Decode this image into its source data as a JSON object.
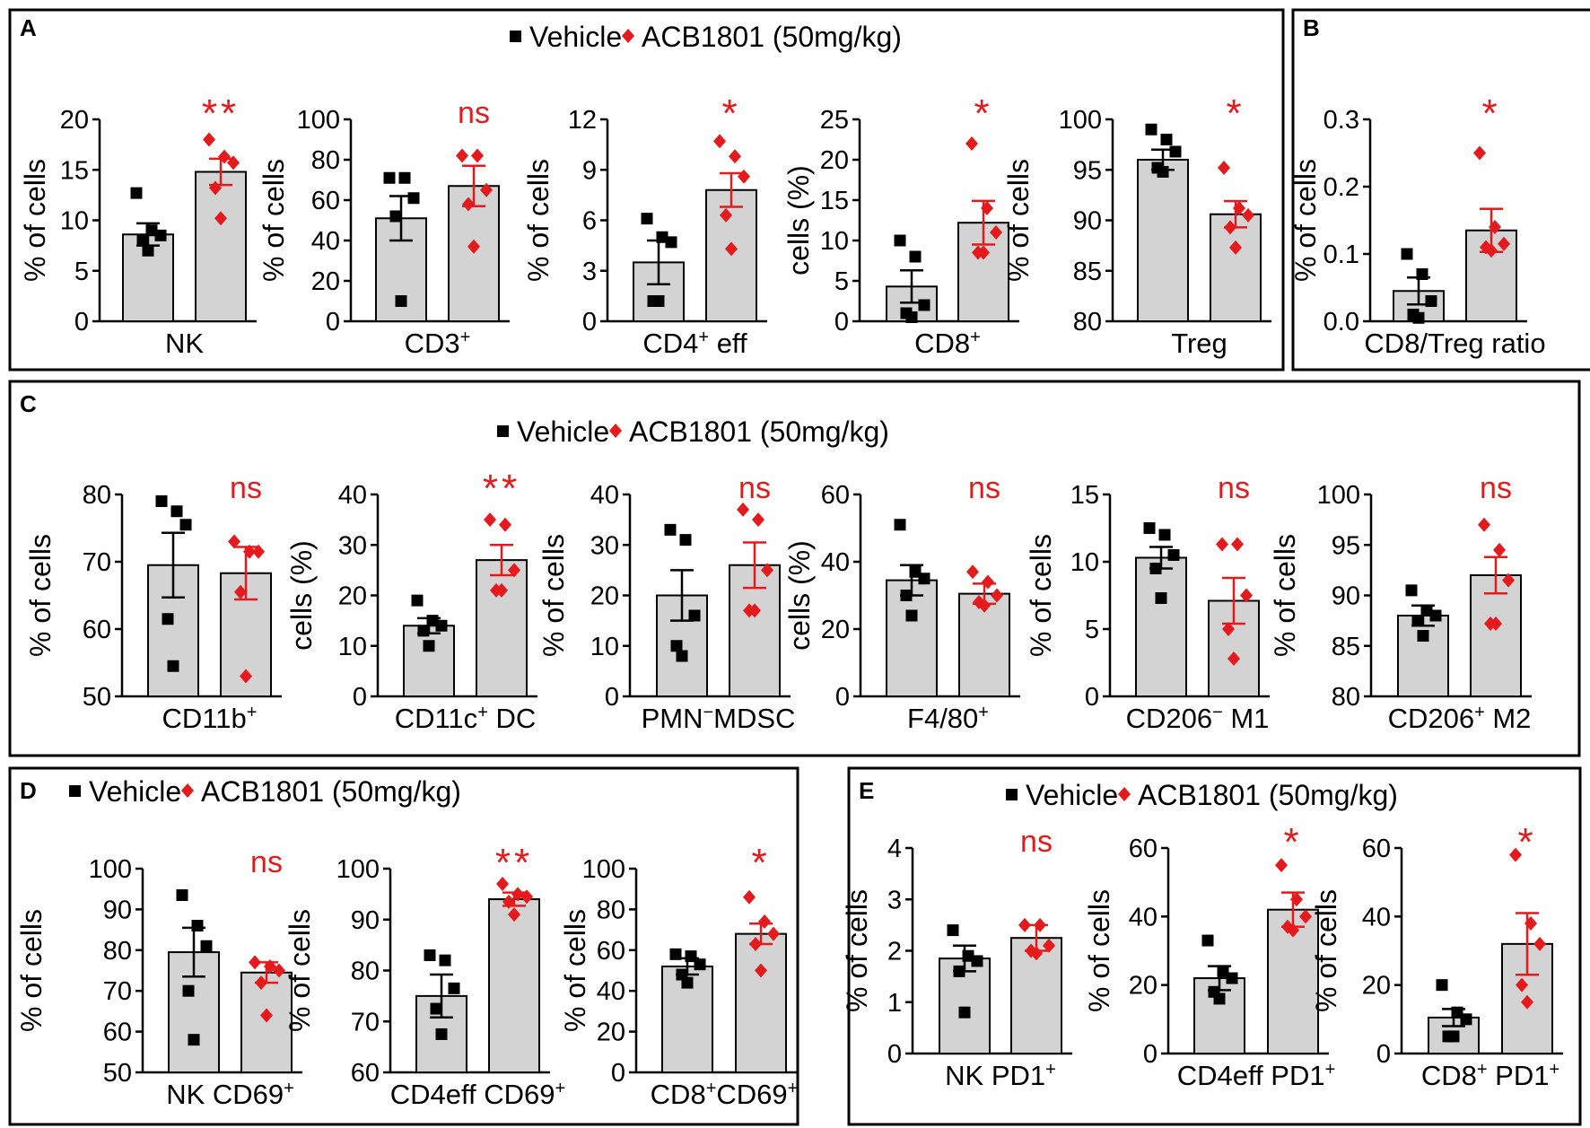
{
  "legend": {
    "vehicle_label": "Vehicle",
    "treatment_label": "ACB1801 (50mg/kg)",
    "vehicle_color": "#000000",
    "treatment_color": "#e41a1c",
    "vehicle_marker": "square-icon",
    "treatment_marker": "diamond-icon"
  },
  "panels": [
    {
      "label": "A",
      "show_legend": true
    },
    {
      "label": "B",
      "show_legend": false
    },
    {
      "label": "C",
      "show_legend": true
    },
    {
      "label": "D",
      "show_legend": true
    },
    {
      "label": "E",
      "show_legend": true
    }
  ],
  "chart_data": [
    {
      "panel": "A",
      "type": "bar",
      "xlabel": "NK",
      "ylabel": "% of cells",
      "ylim": [
        0,
        20
      ],
      "yticks": [
        0,
        5,
        10,
        15,
        20
      ],
      "bars": [
        {
          "group": "Vehicle",
          "mean": 8.6,
          "sem": 1.1,
          "points": [
            12.7,
            9.0,
            8.5,
            8.0,
            7.0
          ]
        },
        {
          "group": "ACB1801 (50mg/kg)",
          "mean": 14.8,
          "sem": 1.3,
          "points": [
            18.0,
            16.3,
            15.7,
            13.2,
            10.2
          ]
        }
      ],
      "significance": "**"
    },
    {
      "panel": "A",
      "type": "bar",
      "xlabel": "CD3+",
      "ylabel": "% of cells",
      "ylim": [
        0,
        100
      ],
      "yticks": [
        0,
        20,
        40,
        60,
        80,
        100
      ],
      "bars": [
        {
          "group": "Vehicle",
          "mean": 51,
          "sem": 11,
          "points": [
            71,
            71,
            61,
            52,
            10
          ]
        },
        {
          "group": "ACB1801 (50mg/kg)",
          "mean": 67,
          "sem": 10,
          "points": [
            82,
            82,
            65,
            58,
            37
          ]
        }
      ],
      "significance": "ns"
    },
    {
      "panel": "A",
      "type": "bar",
      "xlabel": "CD4+ eff",
      "ylabel": "% of cells",
      "ylim": [
        0,
        12
      ],
      "yticks": [
        0,
        3,
        6,
        9,
        12
      ],
      "bars": [
        {
          "group": "Vehicle",
          "mean": 3.5,
          "sem": 1.3,
          "points": [
            6.1,
            5.0,
            4.7,
            1.2,
            1.2
          ]
        },
        {
          "group": "ACB1801 (50mg/kg)",
          "mean": 7.8,
          "sem": 1.0,
          "points": [
            10.7,
            9.8,
            8.6,
            6.3,
            4.3
          ]
        }
      ],
      "significance": "*"
    },
    {
      "panel": "A",
      "type": "bar",
      "xlabel": "CD8+",
      "ylabel": "cells (%)",
      "ylim": [
        0,
        25
      ],
      "yticks": [
        0,
        5,
        10,
        15,
        20,
        25
      ],
      "bars": [
        {
          "group": "Vehicle",
          "mean": 4.3,
          "sem": 2.0,
          "points": [
            10.0,
            8.0,
            2.0,
            1.0,
            0.5
          ]
        },
        {
          "group": "ACB1801 (50mg/kg)",
          "mean": 12.2,
          "sem": 2.7,
          "points": [
            22.0,
            14.0,
            11.0,
            8.5,
            8.5
          ]
        }
      ],
      "significance": "*"
    },
    {
      "panel": "A",
      "type": "bar",
      "xlabel": "Treg",
      "ylabel": "% of cells",
      "ylim": [
        80,
        100
      ],
      "yticks": [
        80,
        85,
        90,
        95,
        100
      ],
      "bars": [
        {
          "group": "Vehicle",
          "mean": 96,
          "sem": 1.0,
          "points": [
            99,
            98,
            96.8,
            95.2,
            94.8
          ]
        },
        {
          "group": "ACB1801 (50mg/kg)",
          "mean": 90.6,
          "sem": 1.3,
          "points": [
            95.2,
            91.2,
            90.5,
            89.3,
            87.3
          ]
        }
      ],
      "significance": "*"
    },
    {
      "panel": "B",
      "type": "bar",
      "xlabel": "CD8/Treg ratio",
      "ylabel": "% of cells",
      "ylim": [
        0.0,
        0.3
      ],
      "yticks": [
        0.0,
        0.1,
        0.2,
        0.3
      ],
      "tick_labels": [
        "0.0",
        "0.1",
        "0.2",
        "0.3"
      ],
      "bars": [
        {
          "group": "Vehicle",
          "mean": 0.045,
          "sem": 0.02,
          "points": [
            0.1,
            0.07,
            0.03,
            0.01,
            0.005
          ]
        },
        {
          "group": "ACB1801 (50mg/kg)",
          "mean": 0.135,
          "sem": 0.032,
          "points": [
            0.25,
            0.14,
            0.115,
            0.11,
            0.105
          ]
        }
      ],
      "significance": "*"
    },
    {
      "panel": "C",
      "type": "bar",
      "xlabel": "CD11b+",
      "ylabel": "% of cells",
      "ylim": [
        50,
        80
      ],
      "yticks": [
        50,
        60,
        70,
        80
      ],
      "bars": [
        {
          "group": "Vehicle",
          "mean": 69.5,
          "sem": 4.8,
          "points": [
            79,
            77.5,
            75.5,
            61.5,
            54.5
          ]
        },
        {
          "group": "ACB1801 (50mg/kg)",
          "mean": 68.3,
          "sem": 3.9,
          "points": [
            73,
            71.5,
            71.5,
            65.5,
            53
          ]
        }
      ],
      "significance": "ns"
    },
    {
      "panel": "C",
      "type": "bar",
      "xlabel": "CD11c+ DC",
      "ylabel": "cells (%)",
      "ylim": [
        0,
        40
      ],
      "yticks": [
        0,
        10,
        20,
        30,
        40
      ],
      "bars": [
        {
          "group": "Vehicle",
          "mean": 14,
          "sem": 1.5,
          "points": [
            19,
            15,
            14,
            13,
            10
          ]
        },
        {
          "group": "ACB1801 (50mg/kg)",
          "mean": 27,
          "sem": 3.0,
          "points": [
            35,
            34,
            25,
            21,
            21
          ]
        }
      ],
      "significance": "**"
    },
    {
      "panel": "C",
      "type": "bar",
      "xlabel": "PMN-MDSC",
      "ylabel": "% of cells",
      "ylim": [
        0,
        40
      ],
      "yticks": [
        0,
        10,
        20,
        30,
        40
      ],
      "bars": [
        {
          "group": "Vehicle",
          "mean": 20,
          "sem": 5.0,
          "points": [
            33,
            31,
            16,
            10,
            8
          ]
        },
        {
          "group": "ACB1801 (50mg/kg)",
          "mean": 26,
          "sem": 4.5,
          "points": [
            37,
            35,
            25,
            17,
            17
          ]
        }
      ],
      "significance": "ns"
    },
    {
      "panel": "C",
      "type": "bar",
      "xlabel": "F4/80+",
      "ylabel": "cells (%)",
      "ylim": [
        0,
        60
      ],
      "yticks": [
        0,
        20,
        40,
        60
      ],
      "bars": [
        {
          "group": "Vehicle",
          "mean": 34.5,
          "sem": 4.5,
          "points": [
            51,
            37,
            35,
            30,
            24
          ]
        },
        {
          "group": "ACB1801 (50mg/kg)",
          "mean": 30.5,
          "sem": 3.0,
          "points": [
            37,
            34,
            30,
            28,
            27
          ]
        }
      ],
      "significance": "ns"
    },
    {
      "panel": "C",
      "type": "bar",
      "xlabel": "CD206- M1",
      "ylabel": "% of cells",
      "ylim": [
        0,
        15
      ],
      "yticks": [
        0,
        5,
        10,
        15
      ],
      "bars": [
        {
          "group": "Vehicle",
          "mean": 10.3,
          "sem": 0.8,
          "points": [
            12.5,
            12.0,
            10.5,
            9.5,
            7.3
          ]
        },
        {
          "group": "ACB1801 (50mg/kg)",
          "mean": 7.1,
          "sem": 1.7,
          "points": [
            11.3,
            11.3,
            7.5,
            5.0,
            2.8
          ]
        }
      ],
      "significance": "ns"
    },
    {
      "panel": "C",
      "type": "bar",
      "xlabel": "CD206+ M2",
      "ylabel": "% of cells",
      "ylim": [
        80,
        100
      ],
      "yticks": [
        80,
        85,
        90,
        95,
        100
      ],
      "bars": [
        {
          "group": "Vehicle",
          "mean": 88,
          "sem": 1.0,
          "points": [
            90.5,
            88.5,
            88,
            87.5,
            86
          ]
        },
        {
          "group": "ACB1801 (50mg/kg)",
          "mean": 92,
          "sem": 1.8,
          "points": [
            97,
            94.5,
            91.5,
            87.2,
            87.2
          ]
        }
      ],
      "significance": "ns"
    },
    {
      "panel": "D",
      "type": "bar",
      "xlabel": "NK CD69+",
      "ylabel": "% of cells",
      "ylim": [
        50,
        100
      ],
      "yticks": [
        50,
        60,
        70,
        80,
        90,
        100
      ],
      "bars": [
        {
          "group": "Vehicle",
          "mean": 79.5,
          "sem": 6.0,
          "points": [
            93.5,
            86,
            81,
            70,
            58
          ]
        },
        {
          "group": "ACB1801 (50mg/kg)",
          "mean": 74.5,
          "sem": 2.5,
          "points": [
            77,
            76,
            75,
            72,
            64
          ]
        }
      ],
      "significance": "ns"
    },
    {
      "panel": "D",
      "type": "bar",
      "xlabel": "CD4eff CD69+",
      "ylabel": "% of cells",
      "ylim": [
        60,
        100
      ],
      "yticks": [
        60,
        70,
        80,
        90,
        100
      ],
      "bars": [
        {
          "group": "Vehicle",
          "mean": 75,
          "sem": 4.2,
          "points": [
            83,
            82,
            76.5,
            72.5,
            67.5
          ]
        },
        {
          "group": "ACB1801 (50mg/kg)",
          "mean": 94,
          "sem": 1.3,
          "points": [
            97,
            95,
            94.5,
            93.5,
            91
          ]
        }
      ],
      "significance": "**"
    },
    {
      "panel": "D",
      "type": "bar",
      "xlabel": "CD8+CD69+",
      "ylabel": "% of cells",
      "ylim": [
        0,
        100
      ],
      "yticks": [
        0,
        20,
        40,
        60,
        80,
        100
      ],
      "bars": [
        {
          "group": "Vehicle",
          "mean": 52,
          "sem": 4.0,
          "points": [
            58,
            57,
            53,
            48,
            44
          ]
        },
        {
          "group": "ACB1801 (50mg/kg)",
          "mean": 68,
          "sem": 5.0,
          "points": [
            86,
            74,
            68,
            63,
            50
          ]
        }
      ],
      "significance": "*"
    },
    {
      "panel": "E",
      "type": "bar",
      "xlabel": "NK PD1+",
      "ylabel": "% of cells",
      "ylim": [
        0,
        4
      ],
      "yticks": [
        0,
        1,
        2,
        3,
        4
      ],
      "bars": [
        {
          "group": "Vehicle",
          "mean": 1.85,
          "sem": 0.25,
          "points": [
            2.4,
            1.9,
            1.8,
            1.6,
            0.8
          ]
        },
        {
          "group": "ACB1801 (50mg/kg)",
          "mean": 2.25,
          "sem": 0.25,
          "points": [
            2.5,
            2.5,
            2.1,
            2.0,
            1.95
          ]
        }
      ],
      "significance": "ns"
    },
    {
      "panel": "E",
      "type": "bar",
      "xlabel": "CD4eff PD1+",
      "ylabel": "% of cells",
      "ylim": [
        0,
        60
      ],
      "yticks": [
        0,
        20,
        40,
        60
      ],
      "bars": [
        {
          "group": "Vehicle",
          "mean": 22,
          "sem": 3.5,
          "points": [
            33,
            24,
            22,
            18,
            16
          ]
        },
        {
          "group": "ACB1801 (50mg/kg)",
          "mean": 42,
          "sem": 5.0,
          "points": [
            55,
            45,
            40,
            37,
            36
          ]
        }
      ],
      "significance": "*"
    },
    {
      "panel": "E",
      "type": "bar",
      "xlabel": "CD8+ PD1+",
      "ylabel": "% of cells",
      "ylim": [
        0,
        60
      ],
      "yticks": [
        0,
        20,
        40,
        60
      ],
      "bars": [
        {
          "group": "Vehicle",
          "mean": 10.5,
          "sem": 2.5,
          "points": [
            20,
            12,
            10,
            5,
            5
          ]
        },
        {
          "group": "ACB1801 (50mg/kg)",
          "mean": 32,
          "sem": 9.0,
          "points": [
            58,
            38,
            32,
            20,
            15
          ]
        }
      ],
      "significance": "*"
    }
  ]
}
